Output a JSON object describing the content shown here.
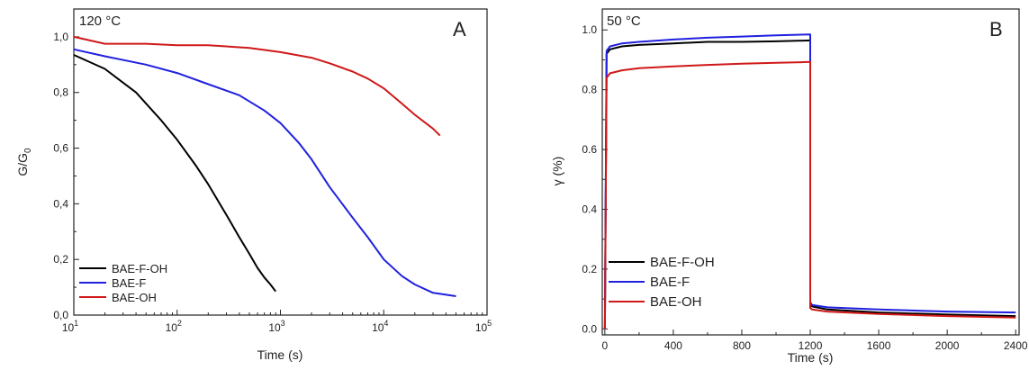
{
  "colors": {
    "BAE-F-OH": "#000000",
    "BAE-F": "#2020e0",
    "BAE-OH": "#d01818"
  },
  "chart_data": [
    {
      "panel": "A",
      "type": "line",
      "title": "",
      "annotation": "120 °C",
      "panel_letter": "A",
      "xlabel": "Time (s)",
      "ylabel_main": "G/G",
      "ylabel_sub": "0",
      "x_scale": "log",
      "xlim": [
        10,
        100000
      ],
      "ylim": [
        0.0,
        1.1
      ],
      "x_ticks": [
        10,
        100,
        1000,
        10000,
        100000
      ],
      "x_tick_labels": [
        {
          "base": "10",
          "exp": "1"
        },
        {
          "base": "10",
          "exp": "2"
        },
        {
          "base": "10",
          "exp": "3"
        },
        {
          "base": "10",
          "exp": "4"
        },
        {
          "base": "10",
          "exp": "5"
        }
      ],
      "y_ticks": [
        0.0,
        0.2,
        0.4,
        0.6,
        0.8,
        1.0
      ],
      "y_tick_labels": [
        "0,0",
        "0,2",
        "0,4",
        "0,6",
        "0,8",
        "1,0"
      ],
      "grid": false,
      "legend_position": "bottom-left",
      "series": [
        {
          "name": "BAE-F-OH",
          "x": [
            10,
            20,
            40,
            70,
            100,
            150,
            200,
            300,
            400,
            500,
            600,
            700,
            800,
            900
          ],
          "y": [
            0.935,
            0.885,
            0.8,
            0.7,
            0.63,
            0.54,
            0.47,
            0.36,
            0.28,
            0.22,
            0.17,
            0.135,
            0.11,
            0.085
          ]
        },
        {
          "name": "BAE-F",
          "x": [
            10,
            20,
            50,
            100,
            200,
            400,
            700,
            1000,
            1500,
            2000,
            3000,
            5000,
            7000,
            10000,
            15000,
            20000,
            30000,
            50000
          ],
          "y": [
            0.955,
            0.93,
            0.9,
            0.87,
            0.83,
            0.79,
            0.735,
            0.69,
            0.62,
            0.56,
            0.46,
            0.35,
            0.28,
            0.2,
            0.14,
            0.11,
            0.08,
            0.068
          ]
        },
        {
          "name": "BAE-OH",
          "x": [
            10,
            20,
            50,
            100,
            200,
            500,
            1000,
            2000,
            3000,
            5000,
            7000,
            10000,
            15000,
            20000,
            30000,
            35000
          ],
          "y": [
            1.0,
            0.975,
            0.975,
            0.97,
            0.97,
            0.96,
            0.945,
            0.925,
            0.905,
            0.875,
            0.85,
            0.815,
            0.76,
            0.72,
            0.67,
            0.645
          ]
        }
      ]
    },
    {
      "panel": "B",
      "type": "line",
      "title": "",
      "annotation": "50 °C",
      "panel_letter": "B",
      "xlabel": "Time (s)",
      "ylabel": "γ (%)",
      "x_scale": "linear",
      "xlim": [
        -15,
        2420
      ],
      "ylim": [
        -0.02,
        1.07
      ],
      "x_ticks": [
        0,
        400,
        800,
        1200,
        1600,
        2000,
        2400
      ],
      "y_ticks": [
        0.0,
        0.2,
        0.4,
        0.6,
        0.8,
        1.0
      ],
      "y_tick_labels": [
        "0.0",
        "0.2",
        "0.4",
        "0.6",
        "0.8",
        "1.0"
      ],
      "grid": false,
      "legend_position": "bottom-left",
      "series": [
        {
          "name": "BAE-F-OH",
          "x": [
            0,
            10,
            30,
            100,
            200,
            400,
            600,
            800,
            1000,
            1200,
            1200,
            1210,
            1300,
            1600,
            2000,
            2400
          ],
          "y": [
            0.0,
            0.92,
            0.935,
            0.945,
            0.95,
            0.955,
            0.96,
            0.96,
            0.962,
            0.965,
            0.085,
            0.075,
            0.065,
            0.055,
            0.048,
            0.043
          ]
        },
        {
          "name": "BAE-F",
          "x": [
            0,
            10,
            30,
            100,
            200,
            400,
            600,
            800,
            1000,
            1200,
            1200,
            1210,
            1300,
            1600,
            2000,
            2400
          ],
          "y": [
            0.0,
            0.93,
            0.945,
            0.955,
            0.96,
            0.968,
            0.974,
            0.978,
            0.982,
            0.985,
            0.09,
            0.08,
            0.072,
            0.065,
            0.058,
            0.055
          ]
        },
        {
          "name": "BAE-OH",
          "x": [
            0,
            10,
            30,
            100,
            200,
            400,
            600,
            800,
            1000,
            1200,
            1200,
            1210,
            1300,
            1600,
            2000,
            2400
          ],
          "y": [
            0.0,
            0.84,
            0.855,
            0.865,
            0.872,
            0.878,
            0.883,
            0.887,
            0.89,
            0.893,
            0.07,
            0.065,
            0.058,
            0.05,
            0.043,
            0.038
          ]
        }
      ]
    }
  ]
}
